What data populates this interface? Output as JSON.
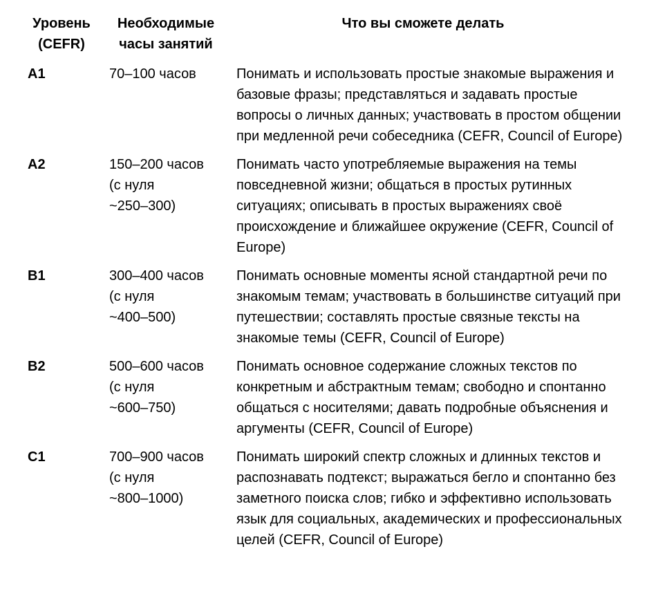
{
  "table": {
    "headers": {
      "level": "Уровень (CEFR)",
      "hours": "Необходимые часы занятий",
      "abilities": "Что вы сможете делать"
    },
    "rows": [
      {
        "level": "A1",
        "hours_lines": [
          "70–100 часов"
        ],
        "description": "Понимать и использовать простые знакомые выражения и базовые фразы; представляться и задавать простые вопросы о личных данных; участвовать в простом общении при медленной речи собеседника (CEFR, Council of Europe)"
      },
      {
        "level": "A2",
        "hours_lines": [
          "150–200 часов",
          "(с нуля",
          "~250–300)"
        ],
        "description": "Понимать часто употребляемые выражения на темы повседневной жизни; общаться в простых рутинных ситуациях; описывать в простых выражениях своё происхождение и ближайшее окружение (CEFR, Council of Europe)"
      },
      {
        "level": "B1",
        "hours_lines": [
          "300–400 часов",
          "(с нуля",
          "~400–500)"
        ],
        "description": "Понимать основные моменты ясной стандартной речи по знакомым темам; участвовать в большинстве ситуаций при путешествии; составлять простые связные тексты на знакомые темы (CEFR, Council of Europe)"
      },
      {
        "level": "B2",
        "hours_lines": [
          "500–600 часов",
          "(с нуля",
          "~600–750)"
        ],
        "description": "Понимать основное содержание сложных текстов по конкретным и абстрактным темам; свободно и спонтанно общаться с носителями; давать подробные объяснения и аргументы (CEFR, Council of Europe)"
      },
      {
        "level": "C1",
        "hours_lines": [
          "700–900 часов",
          "(с нуля",
          "~800–1000)"
        ],
        "description": "Понимать широкий спектр сложных и длинных текстов и распознавать подтекст; выражаться бегло и спонтанно без заметного поиска слов; гибко и эффективно использовать язык для социальных, академических и профессиональных целей (CEFR, Council of Europe)"
      }
    ]
  },
  "colors": {
    "text": "#000000",
    "background": "#ffffff"
  }
}
